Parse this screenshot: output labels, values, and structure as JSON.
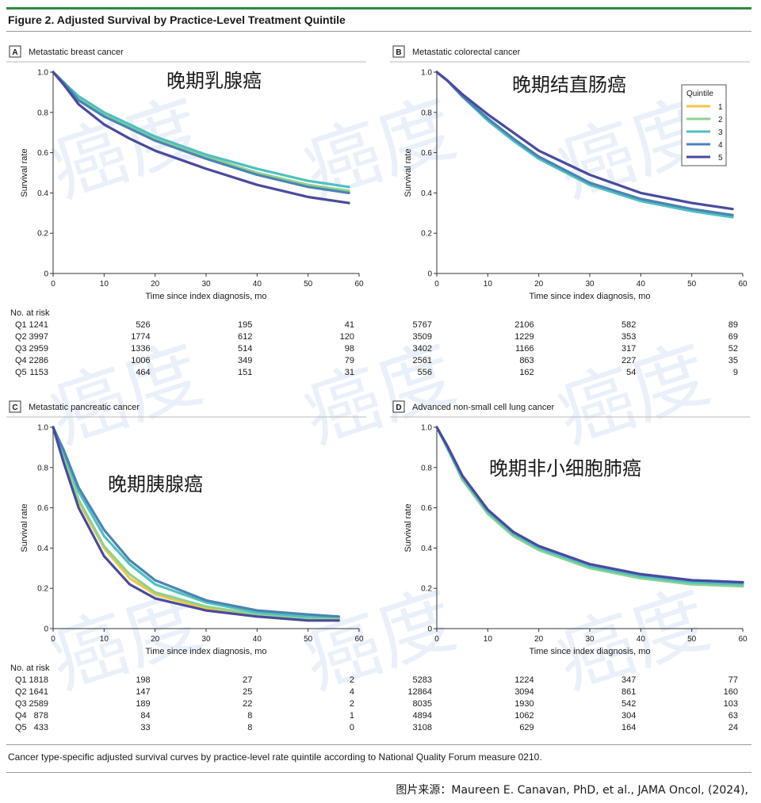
{
  "figure": {
    "title": "Figure 2. Adjusted Survival by Practice-Level Treatment Quintile",
    "caption": "Cancer type-specific adjusted survival curves by practice-level rate quintile according to National Quality Forum measure 0210.",
    "source": "图片来源：Maureen E. Canavan, PhD, et al.,  JAMA Oncol, (2024),"
  },
  "watermark": "癌度",
  "legend": {
    "title": "Quintile",
    "entries": [
      "1",
      "2",
      "3",
      "4",
      "5"
    ]
  },
  "colors": {
    "q1": "#f2c744",
    "q2": "#8fd18f",
    "q3": "#4fc0c0",
    "q4": "#4a84b5",
    "q5": "#4a4a9e",
    "rule": "#2e8b3e"
  },
  "risk_header": "No. at risk",
  "risk_labels": [
    "Q1",
    "Q2",
    "Q3",
    "Q4",
    "Q5"
  ],
  "chart_data": [
    {
      "type": "line",
      "panel": "A",
      "title": "Metastatic breast cancer",
      "annotation": "晚期乳腺癌",
      "xlabel": "Time since index diagnosis, mo",
      "ylabel": "Survival rate",
      "xlim": [
        0,
        60
      ],
      "ylim": [
        0,
        1.0
      ],
      "xticks": [
        "0",
        "10",
        "20",
        "30",
        "40",
        "50",
        "60"
      ],
      "yticks": [
        "0",
        "0.2",
        "0.4",
        "0.6",
        "0.8",
        "1.0"
      ],
      "legend": false,
      "series": [
        {
          "name": "1",
          "x": [
            0,
            2,
            5,
            10,
            15,
            20,
            30,
            40,
            50,
            58
          ],
          "y": [
            1.0,
            0.95,
            0.87,
            0.79,
            0.73,
            0.67,
            0.58,
            0.5,
            0.44,
            0.41
          ]
        },
        {
          "name": "2",
          "x": [
            0,
            2,
            5,
            10,
            15,
            20,
            30,
            40,
            50,
            58
          ],
          "y": [
            1.0,
            0.95,
            0.87,
            0.79,
            0.73,
            0.67,
            0.58,
            0.5,
            0.44,
            0.41
          ]
        },
        {
          "name": "3",
          "x": [
            0,
            2,
            5,
            10,
            15,
            20,
            30,
            40,
            50,
            58
          ],
          "y": [
            1.0,
            0.95,
            0.88,
            0.8,
            0.74,
            0.68,
            0.59,
            0.52,
            0.46,
            0.43
          ]
        },
        {
          "name": "4",
          "x": [
            0,
            2,
            5,
            10,
            15,
            20,
            30,
            40,
            50,
            58
          ],
          "y": [
            1.0,
            0.95,
            0.86,
            0.78,
            0.72,
            0.66,
            0.57,
            0.49,
            0.43,
            0.4
          ]
        },
        {
          "name": "5",
          "x": [
            0,
            2,
            5,
            10,
            15,
            20,
            30,
            40,
            50,
            58
          ],
          "y": [
            1.0,
            0.94,
            0.84,
            0.74,
            0.67,
            0.61,
            0.52,
            0.44,
            0.38,
            0.35
          ]
        }
      ],
      "risk": {
        "times": [
          "0",
          "20",
          "40",
          "60"
        ],
        "rows": [
          [
            "1241",
            "526",
            "195",
            "41"
          ],
          [
            "3997",
            "1774",
            "612",
            "120"
          ],
          [
            "2959",
            "1336",
            "514",
            "98"
          ],
          [
            "2286",
            "1006",
            "349",
            "79"
          ],
          [
            "1153",
            "464",
            "151",
            "31"
          ]
        ]
      }
    },
    {
      "type": "line",
      "panel": "B",
      "title": "Metastatic colorectal cancer",
      "annotation": "晚期结直肠癌",
      "xlabel": "Time since index diagnosis, mo",
      "ylabel": "Survival rate",
      "xlim": [
        0,
        60
      ],
      "ylim": [
        0,
        1.0
      ],
      "xticks": [
        "0",
        "10",
        "20",
        "30",
        "40",
        "50",
        "60"
      ],
      "yticks": [
        "0",
        "0.2",
        "0.4",
        "0.6",
        "0.8",
        "1.0"
      ],
      "legend": true,
      "series": [
        {
          "name": "1",
          "x": [
            0,
            2,
            5,
            10,
            15,
            20,
            30,
            40,
            50,
            58
          ],
          "y": [
            1.0,
            0.96,
            0.88,
            0.77,
            0.67,
            0.58,
            0.45,
            0.37,
            0.32,
            0.29
          ]
        },
        {
          "name": "2",
          "x": [
            0,
            2,
            5,
            10,
            15,
            20,
            30,
            40,
            50,
            58
          ],
          "y": [
            1.0,
            0.96,
            0.88,
            0.76,
            0.66,
            0.57,
            0.44,
            0.36,
            0.31,
            0.28
          ]
        },
        {
          "name": "3",
          "x": [
            0,
            2,
            5,
            10,
            15,
            20,
            30,
            40,
            50,
            58
          ],
          "y": [
            1.0,
            0.96,
            0.88,
            0.76,
            0.66,
            0.57,
            0.44,
            0.36,
            0.31,
            0.28
          ]
        },
        {
          "name": "4",
          "x": [
            0,
            2,
            5,
            10,
            15,
            20,
            30,
            40,
            50,
            58
          ],
          "y": [
            1.0,
            0.96,
            0.88,
            0.77,
            0.67,
            0.58,
            0.45,
            0.37,
            0.32,
            0.29
          ]
        },
        {
          "name": "5",
          "x": [
            0,
            2,
            5,
            10,
            15,
            20,
            30,
            40,
            50,
            58
          ],
          "y": [
            1.0,
            0.96,
            0.89,
            0.79,
            0.7,
            0.61,
            0.49,
            0.4,
            0.35,
            0.32
          ]
        }
      ],
      "risk": {
        "times": [
          "0",
          "20",
          "40",
          "60"
        ],
        "rows": [
          [
            "5767",
            "2106",
            "582",
            "89"
          ],
          [
            "3509",
            "1229",
            "353",
            "69"
          ],
          [
            "3402",
            "1166",
            "317",
            "52"
          ],
          [
            "2561",
            "863",
            "227",
            "35"
          ],
          [
            "556",
            "162",
            "54",
            "9"
          ]
        ]
      }
    },
    {
      "type": "line",
      "panel": "C",
      "title": "Metastatic pancreatic cancer",
      "annotation": "晚期胰腺癌",
      "xlabel": "Time since index diagnosis, mo",
      "ylabel": "Survival rate",
      "xlim": [
        0,
        60
      ],
      "ylim": [
        0,
        1.0
      ],
      "xticks": [
        "0",
        "10",
        "20",
        "30",
        "40",
        "50",
        "60"
      ],
      "yticks": [
        "0",
        "0.2",
        "0.4",
        "0.6",
        "0.8",
        "1.0"
      ],
      "legend": false,
      "series": [
        {
          "name": "1",
          "x": [
            0,
            2,
            5,
            10,
            15,
            20,
            30,
            40,
            50,
            56
          ],
          "y": [
            1.0,
            0.85,
            0.63,
            0.4,
            0.25,
            0.17,
            0.1,
            0.07,
            0.05,
            0.05
          ]
        },
        {
          "name": "2",
          "x": [
            0,
            2,
            5,
            10,
            15,
            20,
            30,
            40,
            50,
            56
          ],
          "y": [
            1.0,
            0.86,
            0.64,
            0.41,
            0.27,
            0.18,
            0.11,
            0.07,
            0.05,
            0.05
          ]
        },
        {
          "name": "3",
          "x": [
            0,
            2,
            5,
            10,
            15,
            20,
            30,
            40,
            50,
            56
          ],
          "y": [
            1.0,
            0.88,
            0.68,
            0.46,
            0.32,
            0.22,
            0.13,
            0.08,
            0.06,
            0.06
          ]
        },
        {
          "name": "4",
          "x": [
            0,
            2,
            5,
            10,
            15,
            20,
            30,
            40,
            50,
            56
          ],
          "y": [
            1.0,
            0.89,
            0.7,
            0.49,
            0.34,
            0.24,
            0.14,
            0.09,
            0.07,
            0.06
          ]
        },
        {
          "name": "5",
          "x": [
            0,
            2,
            5,
            10,
            15,
            20,
            30,
            40,
            50,
            56
          ],
          "y": [
            1.0,
            0.83,
            0.6,
            0.36,
            0.22,
            0.15,
            0.09,
            0.06,
            0.04,
            0.04
          ]
        }
      ],
      "risk": {
        "times": [
          "0",
          "20",
          "40",
          "60"
        ],
        "rows": [
          [
            "1818",
            "198",
            "27",
            "2"
          ],
          [
            "1641",
            "147",
            "25",
            "4"
          ],
          [
            "2589",
            "189",
            "22",
            "2"
          ],
          [
            "878",
            "84",
            "8",
            "1"
          ],
          [
            "433",
            "33",
            "8",
            "0"
          ]
        ]
      }
    },
    {
      "type": "line",
      "panel": "D",
      "title": "Advanced non-small cell lung cancer",
      "annotation": "晚期非小细胞肺癌",
      "xlabel": "Time since index diagnosis, mo",
      "ylabel": "Survival rate",
      "xlim": [
        0,
        60
      ],
      "ylim": [
        0,
        1.0
      ],
      "xticks": [
        "0",
        "10",
        "20",
        "30",
        "40",
        "50",
        "60"
      ],
      "yticks": [
        "0",
        "0.2",
        "0.4",
        "0.6",
        "0.8",
        "1.0"
      ],
      "legend": false,
      "series": [
        {
          "name": "1",
          "x": [
            0,
            2,
            5,
            10,
            15,
            20,
            30,
            40,
            50,
            60
          ],
          "y": [
            1.0,
            0.9,
            0.75,
            0.58,
            0.47,
            0.4,
            0.31,
            0.26,
            0.23,
            0.22
          ]
        },
        {
          "name": "2",
          "x": [
            0,
            2,
            5,
            10,
            15,
            20,
            30,
            40,
            50,
            60
          ],
          "y": [
            1.0,
            0.9,
            0.74,
            0.57,
            0.46,
            0.39,
            0.3,
            0.25,
            0.22,
            0.21
          ]
        },
        {
          "name": "3",
          "x": [
            0,
            2,
            5,
            10,
            15,
            20,
            30,
            40,
            50,
            60
          ],
          "y": [
            1.0,
            0.9,
            0.75,
            0.58,
            0.47,
            0.4,
            0.31,
            0.26,
            0.23,
            0.22
          ]
        },
        {
          "name": "4",
          "x": [
            0,
            2,
            5,
            10,
            15,
            20,
            30,
            40,
            50,
            60
          ],
          "y": [
            1.0,
            0.91,
            0.76,
            0.59,
            0.48,
            0.41,
            0.32,
            0.27,
            0.24,
            0.23
          ]
        },
        {
          "name": "5",
          "x": [
            0,
            2,
            5,
            10,
            15,
            20,
            30,
            40,
            50,
            60
          ],
          "y": [
            1.0,
            0.91,
            0.76,
            0.59,
            0.48,
            0.41,
            0.32,
            0.27,
            0.24,
            0.23
          ]
        }
      ],
      "risk": {
        "times": [
          "0",
          "20",
          "40",
          "60"
        ],
        "rows": [
          [
            "5283",
            "1224",
            "347",
            "77"
          ],
          [
            "12864",
            "3094",
            "861",
            "160"
          ],
          [
            "8035",
            "1930",
            "542",
            "103"
          ],
          [
            "4894",
            "1062",
            "304",
            "63"
          ],
          [
            "3108",
            "629",
            "164",
            "24"
          ]
        ]
      }
    }
  ]
}
